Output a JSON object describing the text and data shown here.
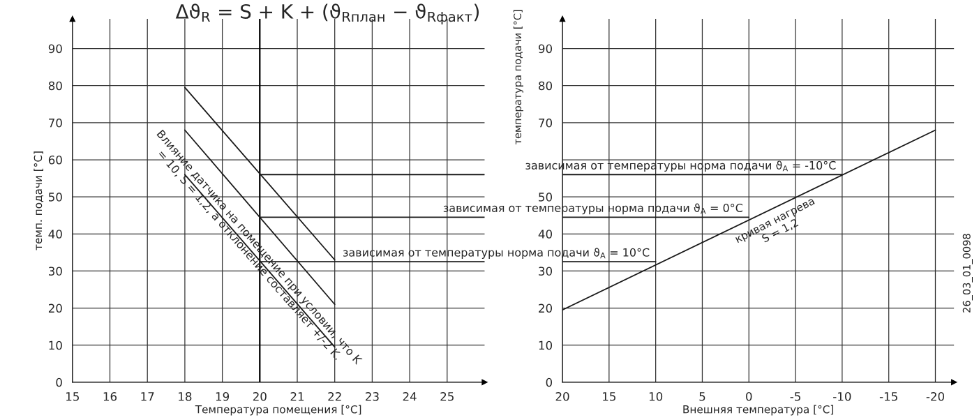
{
  "chart_data": [
    {
      "type": "line",
      "title": "Δϑ$_{R}$ = S + K + (ϑ$_{Rплан}$ − ϑ$_{Rфакт}$)",
      "xlabel": "Температура помещения [°C]",
      "ylabel": "темп. подачи [°C]",
      "xlim": [
        15,
        26
      ],
      "ylim": [
        0,
        98
      ],
      "xticks": [
        15,
        16,
        17,
        18,
        19,
        20,
        21,
        22,
        23,
        24,
        25
      ],
      "yticks": [
        0,
        10,
        20,
        30,
        40,
        50,
        60,
        70,
        80,
        90
      ],
      "grid": true,
      "ref_lines": [
        {
          "axis": "x",
          "value": 20,
          "color": "#000000"
        }
      ],
      "series": [
        {
          "color": "#1a1a1a",
          "x": [
            18,
            22
          ],
          "values": [
            79.5,
            33
          ]
        },
        {
          "color": "#1a1a1a",
          "x": [
            18,
            22
          ],
          "values": [
            68,
            21
          ]
        },
        {
          "color": "#1a1a1a",
          "x": [
            18,
            22
          ],
          "values": [
            56,
            9.5
          ]
        },
        {
          "color": "#1a1a1a",
          "x": [
            20,
            26
          ],
          "values": [
            56,
            56
          ]
        },
        {
          "color": "#1a1a1a",
          "x": [
            20,
            26
          ],
          "values": [
            44.5,
            44.5
          ]
        },
        {
          "color": "#1a1a1a",
          "x": [
            20,
            26
          ],
          "values": [
            32.5,
            32.5
          ]
        }
      ],
      "annotations": [
        "Влияние датчика на помещение при условии, что K\n= 10, S = 1,2, а отклонение составляет +/-2 K."
      ]
    },
    {
      "type": "line",
      "xlabel": "Внешняя температура [°C]",
      "ylabel": "температура подачи [°C]",
      "xlim": [
        20,
        -22
      ],
      "ylim": [
        0,
        98
      ],
      "xticks": [
        20,
        15,
        10,
        5,
        0,
        -5,
        -10,
        -15,
        -20
      ],
      "yticks": [
        0,
        10,
        20,
        30,
        40,
        50,
        {
          "value": 60,
          "label": null
        },
        70,
        80,
        90
      ],
      "grid": true,
      "series": [
        {
          "color": "#1a1a1a",
          "x": [
            20,
            -20
          ],
          "values": [
            19.5,
            68
          ]
        },
        {
          "color": "#1a1a1a",
          "x": [
            20,
            -10
          ],
          "values": [
            56,
            56
          ]
        },
        {
          "color": "#1a1a1a",
          "x": [
            20,
            0
          ],
          "values": [
            44.5,
            44.5
          ]
        },
        {
          "color": "#1a1a1a",
          "x": [
            20,
            10
          ],
          "values": [
            32.5,
            32.5
          ]
        }
      ],
      "annotations": [
        {
          "text": "зависимая от температуры норма подачи ϑ$_{A}$ = -10°C",
          "x": -10,
          "y": 56
        },
        {
          "text": "зависимая от температуры норма подачи ϑ$_{A}$ = 0°C",
          "x": 0,
          "y": 44.5
        },
        {
          "text": "зависимая от температуры норма подачи ϑ$_{A}$ = 10°C",
          "x": 10,
          "y": 32.5
        },
        "кривая нагрева\nS = 1,2",
        "26_03_01_0098"
      ]
    }
  ]
}
